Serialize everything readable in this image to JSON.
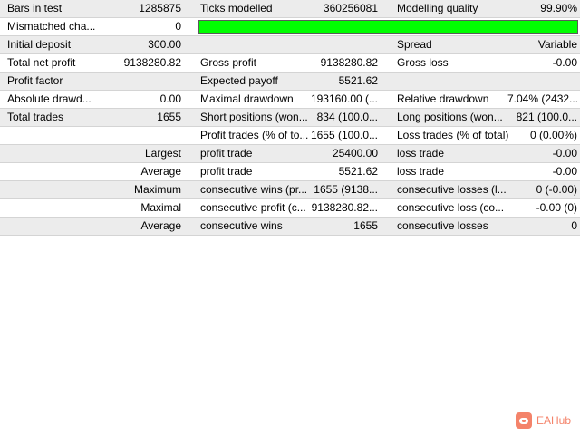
{
  "report": {
    "rows": [
      [
        "Bars in test",
        "1285875",
        "Ticks modelled",
        "360256081",
        "Modelling quality",
        "99.90%"
      ],
      [
        "Mismatched cha...",
        "0",
        "",
        "",
        "",
        ""
      ],
      [
        "Initial deposit",
        "300.00",
        "",
        "",
        "Spread",
        "Variable"
      ],
      [
        "Total net profit",
        "9138280.82",
        "Gross profit",
        "9138280.82",
        "Gross loss",
        "-0.00"
      ],
      [
        "Profit factor",
        "",
        "Expected payoff",
        "5521.62",
        "",
        ""
      ],
      [
        "Absolute drawd...",
        "0.00",
        "Maximal drawdown",
        "193160.00 (...",
        "Relative drawdown",
        "7.04% (2432..."
      ],
      [
        "Total trades",
        "1655",
        "Short positions (won...",
        "834 (100.0...",
        "Long positions (won...",
        "821 (100.0..."
      ],
      [
        "",
        "",
        "Profit trades (% of to...",
        "1655 (100.0...",
        "Loss trades (% of total)",
        "0 (0.00%)"
      ],
      [
        "Largest",
        "",
        "profit trade",
        "25400.00",
        "loss trade",
        "-0.00"
      ],
      [
        "Average",
        "",
        "profit trade",
        "5521.62",
        "loss trade",
        "-0.00"
      ],
      [
        "Maximum",
        "",
        "consecutive wins (pr...",
        "1655 (9138...",
        "consecutive losses (l...",
        "0 (-0.00)"
      ],
      [
        "Maximal",
        "",
        "consecutive profit (c...",
        "9138280.82...",
        "consecutive loss (co...",
        "-0.00 (0)"
      ],
      [
        "Average",
        "",
        "consecutive wins",
        "1655",
        "consecutive losses",
        "0"
      ]
    ],
    "modelling_quality_bar": {
      "fraction": 0.999,
      "color": "#00ff00"
    }
  },
  "watermark": {
    "text": "EAHub",
    "icon": "pig-logo-icon",
    "color": "#f4836a"
  }
}
